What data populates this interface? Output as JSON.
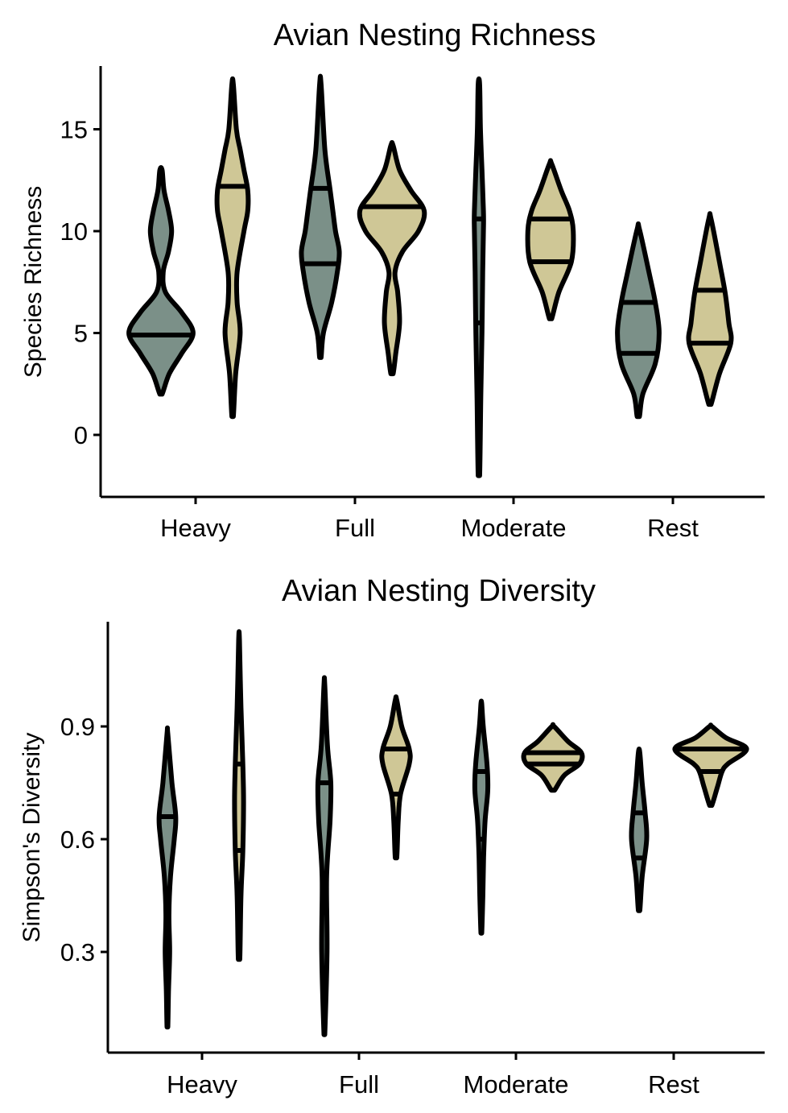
{
  "colors": {
    "series_a": "#7b9088",
    "series_b": "#cfc796",
    "outline": "#000000"
  },
  "chart_data": [
    {
      "type": "violin",
      "title": "Avian Nesting Richness",
      "xlabel": "",
      "ylabel": "Species Richness",
      "categories": [
        "Heavy",
        "Full",
        "Moderate",
        "Rest"
      ],
      "yticks": [
        0,
        5,
        10,
        15
      ],
      "ytick_labels": [
        "0",
        "5",
        "10",
        "15"
      ],
      "ylim": [
        -3,
        18
      ],
      "legend": "none",
      "grid": false,
      "violins": [
        {
          "category": "Heavy",
          "series": "a",
          "min": 2,
          "max": 13,
          "quartiles": [
            4.9
          ],
          "profile": [
            [
              2,
              0.03
            ],
            [
              3,
              0.22
            ],
            [
              4,
              0.55
            ],
            [
              5,
              0.85
            ],
            [
              6,
              0.55
            ],
            [
              7,
              0.12
            ],
            [
              8,
              0.06
            ],
            [
              9,
              0.2
            ],
            [
              10,
              0.28
            ],
            [
              11,
              0.2
            ],
            [
              12,
              0.08
            ],
            [
              13,
              0.03
            ]
          ]
        },
        {
          "category": "Heavy",
          "series": "b",
          "min": 0.9,
          "max": 17.2,
          "quartiles": [
            12.2
          ],
          "profile": [
            [
              0.9,
              0.02
            ],
            [
              3,
              0.08
            ],
            [
              5,
              0.2
            ],
            [
              6.5,
              0.12
            ],
            [
              8,
              0.12
            ],
            [
              10,
              0.3
            ],
            [
              11,
              0.4
            ],
            [
              12,
              0.4
            ],
            [
              13,
              0.3
            ],
            [
              14,
              0.2
            ],
            [
              15,
              0.1
            ],
            [
              17.2,
              0.02
            ]
          ]
        },
        {
          "category": "Full",
          "series": "a",
          "min": 3.8,
          "max": 17.2,
          "quartiles": [
            8.4,
            12.1
          ],
          "profile": [
            [
              3.8,
              0.02
            ],
            [
              5,
              0.08
            ],
            [
              6.5,
              0.3
            ],
            [
              8,
              0.45
            ],
            [
              9,
              0.5
            ],
            [
              10,
              0.4
            ],
            [
              11,
              0.33
            ],
            [
              12,
              0.26
            ],
            [
              14,
              0.12
            ],
            [
              17.2,
              0.02
            ]
          ]
        },
        {
          "category": "Full",
          "series": "b",
          "min": 3,
          "max": 14.2,
          "quartiles": [
            11.2
          ],
          "profile": [
            [
              3,
              0.03
            ],
            [
              4,
              0.1
            ],
            [
              5.5,
              0.2
            ],
            [
              7,
              0.15
            ],
            [
              8,
              0.08
            ],
            [
              9,
              0.28
            ],
            [
              10,
              0.7
            ],
            [
              11,
              0.85
            ],
            [
              12,
              0.5
            ],
            [
              13,
              0.2
            ],
            [
              14.2,
              0.03
            ]
          ]
        },
        {
          "category": "Moderate",
          "series": "a",
          "min": -2,
          "max": 17.2,
          "quartiles": [
            5.5,
            10.6
          ],
          "profile": [
            [
              -2,
              0.02
            ],
            [
              2,
              0.05
            ],
            [
              5,
              0.08
            ],
            [
              8,
              0.1
            ],
            [
              10,
              0.12
            ],
            [
              11,
              0.12
            ],
            [
              13,
              0.08
            ],
            [
              15,
              0.04
            ],
            [
              17.2,
              0.02
            ]
          ]
        },
        {
          "category": "Moderate",
          "series": "b",
          "min": 5.7,
          "max": 13.3,
          "quartiles": [
            8.5,
            10.6
          ],
          "profile": [
            [
              5.7,
              0.03
            ],
            [
              7,
              0.22
            ],
            [
              8.5,
              0.55
            ],
            [
              10,
              0.6
            ],
            [
              11,
              0.5
            ],
            [
              12,
              0.28
            ],
            [
              13.3,
              0.03
            ]
          ]
        },
        {
          "category": "Rest",
          "series": "a",
          "min": 0.9,
          "max": 10.1,
          "quartiles": [
            4.0,
            6.5
          ],
          "profile": [
            [
              0.9,
              0.03
            ],
            [
              2,
              0.12
            ],
            [
              3.5,
              0.45
            ],
            [
              5,
              0.55
            ],
            [
              6.5,
              0.45
            ],
            [
              8,
              0.28
            ],
            [
              10.1,
              0.03
            ]
          ]
        },
        {
          "category": "Rest",
          "series": "b",
          "min": 1.5,
          "max": 10.6,
          "quartiles": [
            4.5,
            7.1
          ],
          "profile": [
            [
              1.5,
              0.03
            ],
            [
              3,
              0.25
            ],
            [
              4.5,
              0.55
            ],
            [
              5.5,
              0.5
            ],
            [
              7,
              0.4
            ],
            [
              8.5,
              0.25
            ],
            [
              10.6,
              0.03
            ]
          ]
        }
      ]
    },
    {
      "type": "violin",
      "title": "Avian Nesting Diversity",
      "xlabel": "",
      "ylabel": "Simpson's Diversity",
      "categories": [
        "Heavy",
        "Full",
        "Moderate",
        "Rest"
      ],
      "yticks": [
        0.3,
        0.6,
        0.9
      ],
      "ytick_labels": [
        "0.3",
        "0.6",
        "0.9"
      ],
      "ylim": [
        0.04,
        1.18
      ],
      "legend": "none",
      "grid": false,
      "violins": [
        {
          "category": "Heavy",
          "series": "a",
          "min": 0.1,
          "max": 0.88,
          "quartiles": [
            0.66
          ],
          "profile": [
            [
              0.1,
              0.01
            ],
            [
              0.2,
              0.03
            ],
            [
              0.3,
              0.06
            ],
            [
              0.4,
              0.04
            ],
            [
              0.5,
              0.08
            ],
            [
              0.6,
              0.18
            ],
            [
              0.66,
              0.22
            ],
            [
              0.75,
              0.12
            ],
            [
              0.88,
              0.01
            ]
          ]
        },
        {
          "category": "Heavy",
          "series": "b",
          "min": 0.28,
          "max": 1.13,
          "quartiles": [
            0.57,
            0.8
          ],
          "profile": [
            [
              0.28,
              0.02
            ],
            [
              0.45,
              0.05
            ],
            [
              0.57,
              0.1
            ],
            [
              0.7,
              0.12
            ],
            [
              0.8,
              0.1
            ],
            [
              0.95,
              0.05
            ],
            [
              1.13,
              0.01
            ]
          ]
        },
        {
          "category": "Full",
          "series": "a",
          "min": 0.08,
          "max": 1.01,
          "quartiles": [
            0.75
          ],
          "profile": [
            [
              0.08,
              0.01
            ],
            [
              0.3,
              0.07
            ],
            [
              0.5,
              0.06
            ],
            [
              0.65,
              0.15
            ],
            [
              0.75,
              0.17
            ],
            [
              0.85,
              0.08
            ],
            [
              1.01,
              0.01
            ]
          ]
        },
        {
          "category": "Full",
          "series": "b",
          "min": 0.55,
          "max": 0.97,
          "quartiles": [
            0.72,
            0.84
          ],
          "profile": [
            [
              0.55,
              0.02
            ],
            [
              0.65,
              0.06
            ],
            [
              0.72,
              0.12
            ],
            [
              0.8,
              0.35
            ],
            [
              0.84,
              0.35
            ],
            [
              0.9,
              0.15
            ],
            [
              0.97,
              0.02
            ]
          ]
        },
        {
          "category": "Moderate",
          "series": "a",
          "min": 0.35,
          "max": 0.96,
          "quartiles": [
            0.6,
            0.78
          ],
          "profile": [
            [
              0.35,
              0.01
            ],
            [
              0.45,
              0.04
            ],
            [
              0.55,
              0.06
            ],
            [
              0.65,
              0.1
            ],
            [
              0.73,
              0.17
            ],
            [
              0.8,
              0.15
            ],
            [
              0.9,
              0.05
            ],
            [
              0.96,
              0.01
            ]
          ]
        },
        {
          "category": "Moderate",
          "series": "b",
          "min": 0.73,
          "max": 0.9,
          "quartiles": [
            0.8,
            0.83
          ],
          "profile": [
            [
              0.73,
              0.04
            ],
            [
              0.77,
              0.3
            ],
            [
              0.8,
              0.7
            ],
            [
              0.83,
              0.75
            ],
            [
              0.86,
              0.4
            ],
            [
              0.9,
              0.03
            ]
          ]
        },
        {
          "category": "Rest",
          "series": "a",
          "min": 0.41,
          "max": 0.83,
          "quartiles": [
            0.55,
            0.67
          ],
          "profile": [
            [
              0.41,
              0.02
            ],
            [
              0.5,
              0.08
            ],
            [
              0.6,
              0.2
            ],
            [
              0.67,
              0.16
            ],
            [
              0.75,
              0.08
            ],
            [
              0.83,
              0.02
            ]
          ]
        },
        {
          "category": "Rest",
          "series": "b",
          "min": 0.69,
          "max": 0.9,
          "quartiles": [
            0.78,
            0.84
          ],
          "profile": [
            [
              0.69,
              0.03
            ],
            [
              0.74,
              0.18
            ],
            [
              0.78,
              0.3
            ],
            [
              0.8,
              0.45
            ],
            [
              0.84,
              0.95
            ],
            [
              0.87,
              0.4
            ],
            [
              0.9,
              0.03
            ]
          ]
        }
      ]
    }
  ]
}
